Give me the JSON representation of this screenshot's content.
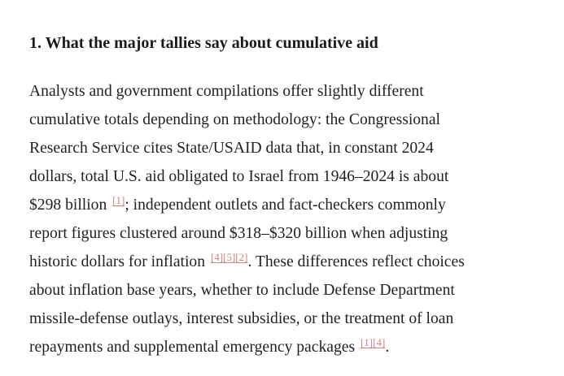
{
  "section": {
    "heading": "1. What the major tallies say about cumulative aid"
  },
  "paragraph": {
    "lines": [
      "Analysts and government compilations offer slightly different",
      "cumulative totals depending on methodology: the Congressional",
      "Research Service cites State/USAID data that, in constant 2024",
      "dollars, total U.S. aid obligated to Israel from 1946–2024 is about"
    ],
    "line5_text": "$298 billion ",
    "line5_after": "; independent outlets and fact-checkers commonly",
    "line6": "report figures clustered around $318–$320 billion when adjusting",
    "line7_text": "historic dollars for inflation ",
    "line7_after": ". These differences reflect choices",
    "line8": "about inflation base years, whether to include Defense Department",
    "line9": "missile-defense outlays, interest subsidies, or the treatment of loan",
    "line10_text": "repayments and supplemental emergency packages ",
    "line10_after": "."
  },
  "citations": {
    "c1": "[1]",
    "c4": "[4]",
    "c5": "[5]",
    "c2": "[2]",
    "c1b": "[1]",
    "c4b": "[4]"
  },
  "colors": {
    "text": "#1f1f1f",
    "heading": "#1a1a1a",
    "citation": "#d2827c",
    "background": "#ffffff"
  }
}
